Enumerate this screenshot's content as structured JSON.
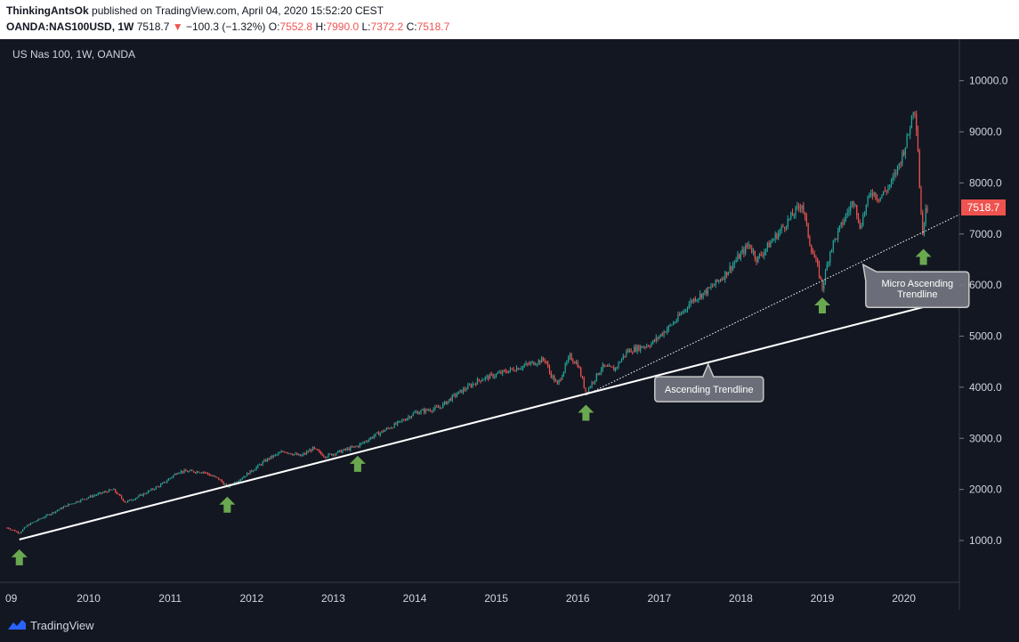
{
  "header": {
    "author": "ThinkingAntsOk",
    "published_text": "published on TradingView.com, April 04, 2020 15:52:20 CEST",
    "symbol": "OANDA:NAS100USD, 1W",
    "last": "7518.7",
    "down_arrow": "▼",
    "change": "−100.3 (−1.32%)",
    "open_label": "O:",
    "open": "7552.8",
    "high_label": "H:",
    "high": "7990.0",
    "low_label": "L:",
    "low": "7372.2",
    "close_label": "C:",
    "close": "7518.7"
  },
  "footer": {
    "brand": "TradingView",
    "logo_icon": "tradingview-logo-icon"
  },
  "colors": {
    "background": "#131722",
    "up_candle": "#26a69a",
    "down_candle": "#ef5350",
    "arrow": "#6aa84f",
    "trendline": "#ffffff",
    "callout_fill": "#6b6e78"
  },
  "chart_data": {
    "type": "candlestick",
    "title": "US Nas 100, 1W, OANDA",
    "x_tick_labels": [
      "09",
      "2010",
      "2011",
      "2012",
      "2013",
      "2014",
      "2015",
      "2016",
      "2017",
      "2018",
      "2019",
      "2020"
    ],
    "y_tick_labels": [
      "1000.0",
      "2000.0",
      "3000.0",
      "4000.0",
      "5000.0",
      "6000.0",
      "7000.0",
      "8000.0",
      "9000.0",
      "10000.0"
    ],
    "ylim": [
      0,
      10600
    ],
    "xlim": [
      2009.0,
      2020.8
    ],
    "last_price_label": "7518.7",
    "close_series_approx": [
      [
        2009.0,
        1250
      ],
      [
        2009.15,
        1150
      ],
      [
        2009.25,
        1300
      ],
      [
        2009.5,
        1500
      ],
      [
        2009.75,
        1700
      ],
      [
        2010.0,
        1850
      ],
      [
        2010.3,
        2000
      ],
      [
        2010.45,
        1750
      ],
      [
        2010.6,
        1850
      ],
      [
        2010.9,
        2100
      ],
      [
        2011.1,
        2350
      ],
      [
        2011.4,
        2350
      ],
      [
        2011.6,
        2200
      ],
      [
        2011.7,
        2050
      ],
      [
        2011.9,
        2250
      ],
      [
        2012.2,
        2600
      ],
      [
        2012.4,
        2750
      ],
      [
        2012.6,
        2650
      ],
      [
        2012.75,
        2800
      ],
      [
        2012.9,
        2650
      ],
      [
        2013.1,
        2750
      ],
      [
        2013.3,
        2850
      ],
      [
        2013.5,
        3050
      ],
      [
        2013.8,
        3300
      ],
      [
        2014.0,
        3500
      ],
      [
        2014.3,
        3600
      ],
      [
        2014.5,
        3850
      ],
      [
        2014.8,
        4150
      ],
      [
        2015.0,
        4250
      ],
      [
        2015.3,
        4400
      ],
      [
        2015.6,
        4550
      ],
      [
        2015.65,
        4300
      ],
      [
        2015.75,
        4050
      ],
      [
        2015.9,
        4600
      ],
      [
        2016.0,
        4450
      ],
      [
        2016.1,
        3900
      ],
      [
        2016.3,
        4400
      ],
      [
        2016.45,
        4350
      ],
      [
        2016.6,
        4700
      ],
      [
        2016.9,
        4850
      ],
      [
        2017.2,
        5300
      ],
      [
        2017.4,
        5700
      ],
      [
        2017.6,
        5900
      ],
      [
        2017.8,
        6200
      ],
      [
        2018.0,
        6600
      ],
      [
        2018.1,
        6800
      ],
      [
        2018.2,
        6500
      ],
      [
        2018.4,
        6900
      ],
      [
        2018.6,
        7300
      ],
      [
        2018.75,
        7600
      ],
      [
        2018.85,
        6800
      ],
      [
        2018.95,
        6300
      ],
      [
        2019.0,
        5950
      ],
      [
        2019.1,
        6700
      ],
      [
        2019.3,
        7400
      ],
      [
        2019.4,
        7700
      ],
      [
        2019.45,
        7100
      ],
      [
        2019.6,
        7850
      ],
      [
        2019.7,
        7700
      ],
      [
        2019.85,
        8000
      ],
      [
        2019.95,
        8400
      ],
      [
        2020.05,
        8900
      ],
      [
        2020.12,
        9500
      ],
      [
        2020.14,
        9400
      ],
      [
        2020.17,
        8800
      ],
      [
        2020.19,
        8000
      ],
      [
        2020.22,
        7200
      ],
      [
        2020.24,
        6900
      ],
      [
        2020.27,
        7600
      ],
      [
        2020.29,
        7519
      ]
    ],
    "trendlines": [
      {
        "label": "Ascending Trendline",
        "style": "solid",
        "points": [
          [
            2009.15,
            1020
          ],
          [
            2020.8,
            5750
          ]
        ]
      },
      {
        "label": "Micro Ascending Trendline",
        "style": "dotted",
        "points": [
          [
            2016.1,
            3850
          ],
          [
            2020.8,
            7380
          ]
        ]
      }
    ],
    "annotations": [
      {
        "text": "Ascending Trendline",
        "anchor": [
          2017.6,
          4450
        ]
      },
      {
        "text": "Micro Ascending Trendline",
        "anchor": [
          2019.5,
          6400
        ]
      }
    ],
    "arrows_up_at": [
      [
        2009.15,
        1020
      ],
      [
        2011.7,
        2050
      ],
      [
        2013.3,
        2850
      ],
      [
        2016.1,
        3850
      ],
      [
        2019.0,
        5950
      ],
      [
        2020.24,
        6900
      ]
    ]
  }
}
